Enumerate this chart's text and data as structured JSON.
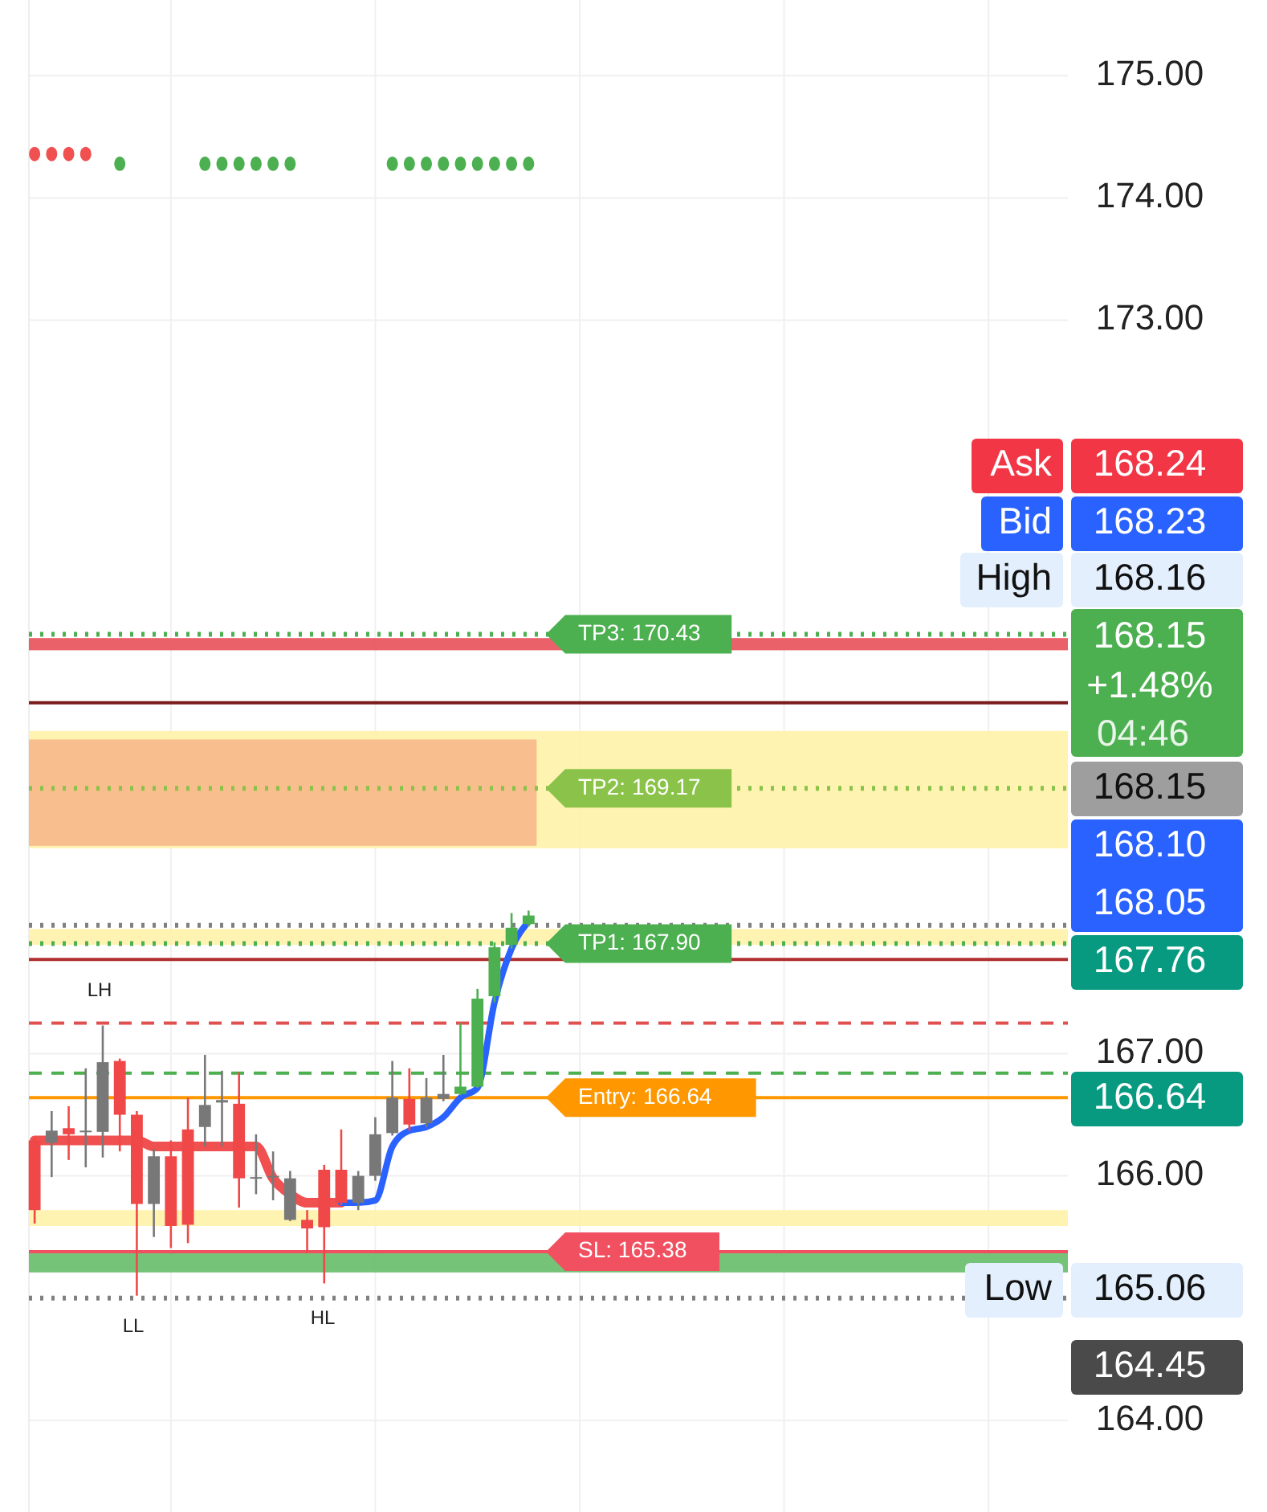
{
  "chart_data": {
    "type": "candlestick",
    "categories": [
      null,
      null,
      null,
      null,
      null,
      null,
      null,
      null,
      null,
      null,
      null,
      null,
      null,
      null,
      null,
      null,
      null,
      null,
      null,
      null,
      null,
      null,
      null,
      null,
      null,
      null,
      null,
      null,
      null,
      null,
      null,
      null,
      null,
      null,
      null,
      null,
      null,
      null,
      null,
      null,
      null,
      null,
      null,
      null,
      null,
      null,
      null,
      null,
      null,
      null,
      null,
      null,
      null,
      null,
      null,
      null,
      null,
      null,
      null,
      null
    ],
    "ohlc": [
      [
        166.29,
        166.31,
        165.61,
        165.72
      ],
      [
        166.27,
        166.53,
        165.99,
        166.37
      ],
      [
        166.39,
        166.57,
        166.13,
        166.34
      ],
      [
        166.36,
        166.88,
        166.07,
        166.37
      ],
      [
        166.36,
        167.23,
        166.15,
        166.93
      ],
      [
        166.94,
        166.96,
        166.2,
        166.5
      ],
      [
        166.5,
        166.53,
        165.02,
        165.77
      ],
      [
        165.77,
        166.22,
        165.5,
        166.16
      ],
      [
        166.16,
        166.29,
        165.41,
        165.59
      ],
      [
        166.38,
        166.64,
        165.45,
        165.6
      ],
      [
        166.4,
        166.99,
        166.24,
        166.58
      ],
      [
        166.6,
        166.86,
        166.24,
        166.62
      ],
      [
        166.59,
        166.85,
        165.74,
        165.98
      ],
      [
        165.99,
        166.34,
        165.85,
        165.98
      ],
      [
        166.0,
        166.2,
        165.8,
        165.99
      ],
      [
        165.64,
        166.04,
        165.63,
        165.98
      ],
      [
        165.64,
        165.72,
        165.37,
        165.57
      ],
      [
        166.05,
        166.09,
        165.12,
        165.58
      ],
      [
        166.05,
        166.38,
        165.76,
        165.78
      ],
      [
        165.78,
        166.04,
        165.72,
        166.0
      ],
      [
        166.0,
        166.48,
        165.96,
        166.34
      ],
      [
        166.35,
        166.94,
        166.33,
        166.64
      ],
      [
        166.63,
        166.88,
        166.37,
        166.42
      ],
      [
        166.43,
        166.8,
        166.4,
        166.64
      ],
      [
        166.63,
        166.99,
        166.61,
        166.67
      ],
      [
        166.67,
        167.25,
        166.66,
        166.73
      ],
      [
        166.73,
        167.53,
        166.72,
        167.45
      ],
      [
        167.47,
        167.91,
        167.42,
        167.87
      ],
      [
        167.89,
        168.15,
        167.86,
        168.03
      ],
      [
        168.06,
        168.17,
        168.04,
        168.13
      ],
      null,
      null,
      null,
      null,
      null,
      null,
      null,
      null,
      null,
      null,
      null,
      null,
      null,
      null,
      null,
      null,
      null,
      null,
      null,
      null,
      null,
      null,
      null,
      null,
      null,
      null,
      null,
      null,
      null,
      null
    ],
    "colors": [
      "#f04848",
      "#787878",
      "#f04848",
      "#787878",
      "#787878",
      "#f04848",
      "#f04848",
      "#787878",
      "#f04848",
      "#f04848",
      "#787878",
      "#787878",
      "#f04848",
      "#787878",
      "#787878",
      "#787878",
      "#f04848",
      "#f04848",
      "#f04848",
      "#787878",
      "#787878",
      "#787878",
      "#f04848",
      "#787878",
      "#787878",
      "#4caf50",
      "#4caf50",
      "#4caf50",
      "#4caf50",
      "#4caf50",
      null,
      null,
      null,
      null,
      null,
      null,
      null,
      null,
      null,
      null,
      null,
      null,
      null,
      null,
      null,
      null,
      null,
      null,
      null,
      null,
      null,
      null,
      null,
      null,
      null,
      null,
      null,
      null,
      null,
      null
    ],
    "series": [
      {
        "type": "line",
        "color": "#f05050",
        "values": [
          166.29,
          166.29,
          166.29,
          166.29,
          166.29,
          166.29,
          166.29,
          166.24,
          166.24,
          166.24,
          166.24,
          166.24,
          166.24,
          166.24,
          165.98,
          165.85,
          165.78,
          165.78,
          165.78,
          null,
          null,
          null,
          null,
          null,
          null,
          null,
          null,
          null,
          null,
          null,
          null,
          null,
          null,
          null,
          null,
          null,
          null,
          null,
          null,
          null,
          null,
          null,
          null,
          null,
          null,
          null,
          null,
          null,
          null,
          null,
          null,
          null,
          null,
          null,
          null,
          null,
          null,
          null,
          null,
          null
        ]
      },
      {
        "type": "line",
        "color": "#2962ff",
        "values": [
          null,
          null,
          null,
          null,
          null,
          null,
          null,
          null,
          null,
          null,
          null,
          null,
          null,
          null,
          null,
          null,
          null,
          null,
          165.78,
          165.78,
          165.8,
          166.24,
          166.37,
          166.4,
          166.48,
          166.64,
          166.72,
          167.42,
          167.86,
          168.08,
          null,
          null,
          null,
          null,
          null,
          null,
          null,
          null,
          null,
          null,
          null,
          null,
          null,
          null,
          null,
          null,
          null,
          null,
          null,
          null,
          null,
          null,
          null,
          null,
          null,
          null,
          null,
          null,
          null,
          null
        ]
      },
      {
        "type": "scatter",
        "color": "#f05050",
        "values": [
          174.36,
          174.36,
          174.36,
          174.36,
          null,
          null,
          null,
          null,
          null,
          null,
          null,
          null,
          null,
          null,
          null,
          null,
          null,
          null,
          null,
          null,
          null,
          null,
          null,
          null,
          null,
          null,
          null,
          null,
          null,
          null,
          null,
          null,
          null,
          null,
          null,
          null,
          null,
          null,
          null,
          null,
          null,
          null,
          null,
          null,
          null,
          null,
          null,
          null,
          null,
          null,
          null,
          null,
          null,
          null,
          null,
          null,
          null,
          null,
          null,
          null
        ]
      },
      {
        "type": "scatter",
        "color": "#4caf50",
        "values": [
          null,
          null,
          null,
          null,
          null,
          174.28,
          null,
          null,
          null,
          null,
          174.28,
          174.28,
          174.28,
          174.28,
          174.28,
          174.28,
          null,
          null,
          null,
          null,
          null,
          174.28,
          174.28,
          174.28,
          174.28,
          174.28,
          174.28,
          174.28,
          174.28,
          174.28,
          null,
          null,
          null,
          null,
          null,
          null,
          null,
          null,
          null,
          null,
          null,
          null,
          null,
          null,
          null,
          null,
          null,
          null,
          null,
          null,
          null,
          null,
          null,
          null,
          null,
          null,
          null,
          null,
          null,
          null
        ]
      }
    ],
    "ylim": [
      163.25,
      175.62
    ],
    "yticks": [
      {
        "value": 164,
        "label": "164.00"
      },
      {
        "value": 166,
        "label": "166.00"
      },
      {
        "value": 167,
        "label": "167.00"
      },
      {
        "value": 173,
        "label": "173.00"
      },
      {
        "value": 174,
        "label": "174.00"
      },
      {
        "value": 175,
        "label": "175.00"
      }
    ],
    "grid": true,
    "bands": [
      {
        "axis": "y",
        "from": 168.68,
        "to": 169.64,
        "color": "#fff2a8"
      },
      {
        "axis": "y",
        "from": 168.7,
        "to": 169.57,
        "color": "#f8b88a"
      },
      {
        "axis": "y",
        "from": 170.3,
        "to": 170.4,
        "color": "#e8505a"
      },
      {
        "axis": "y",
        "from": 167.89,
        "to": 168.02,
        "color": "#fff2a8"
      },
      {
        "axis": "y",
        "from": 165.59,
        "to": 165.72,
        "color": "#fff2a8"
      },
      {
        "axis": "y",
        "from": 165.21,
        "to": 165.37,
        "color": "#66bb6a"
      }
    ],
    "ref_lines": [
      {
        "axis": "y",
        "value": 169.87,
        "color": "#7a1a1a",
        "line_style": "solid"
      },
      {
        "axis": "y",
        "value": 167.77,
        "color": "#b03030",
        "line_style": "solid"
      },
      {
        "axis": "y",
        "value": 167.25,
        "color": "#e05050",
        "line_style": "dashed"
      },
      {
        "axis": "y",
        "value": 166.84,
        "color": "#4caf50",
        "line_style": "dashed"
      },
      {
        "axis": "y",
        "value": 168.05,
        "color": "#808080",
        "line_style": "dotted"
      },
      {
        "axis": "y",
        "value": 165.0,
        "color": "#808080",
        "line_style": "dotted"
      },
      {
        "axis": "y",
        "value": 170.43,
        "label": "TP3: 170.43",
        "color": "#4caf50",
        "line_style": "dotted"
      },
      {
        "axis": "y",
        "value": 169.17,
        "label": "TP2: 169.17",
        "color": "#8bc34a",
        "line_style": "dotted"
      },
      {
        "axis": "y",
        "value": 167.9,
        "label": "TP1: 167.90",
        "color": "#4caf50",
        "line_style": "dotted"
      },
      {
        "axis": "y",
        "value": 166.64,
        "label": "Entry: 166.64",
        "color": "#ff9800",
        "line_style": "solid"
      },
      {
        "axis": "y",
        "value": 165.38,
        "label": "SL: 165.38",
        "color": "#f05060",
        "line_style": "solid"
      }
    ],
    "annotations": [
      "Ask",
      "168.24",
      "Bid",
      "168.23",
      "High",
      "168.16",
      "168.15",
      "+1.48%",
      "04:46",
      "168.15",
      "168.10",
      "168.05",
      "167.76",
      "166.64",
      "Low",
      "165.06",
      "164.45",
      "LH",
      "LL",
      "HL"
    ]
  }
}
